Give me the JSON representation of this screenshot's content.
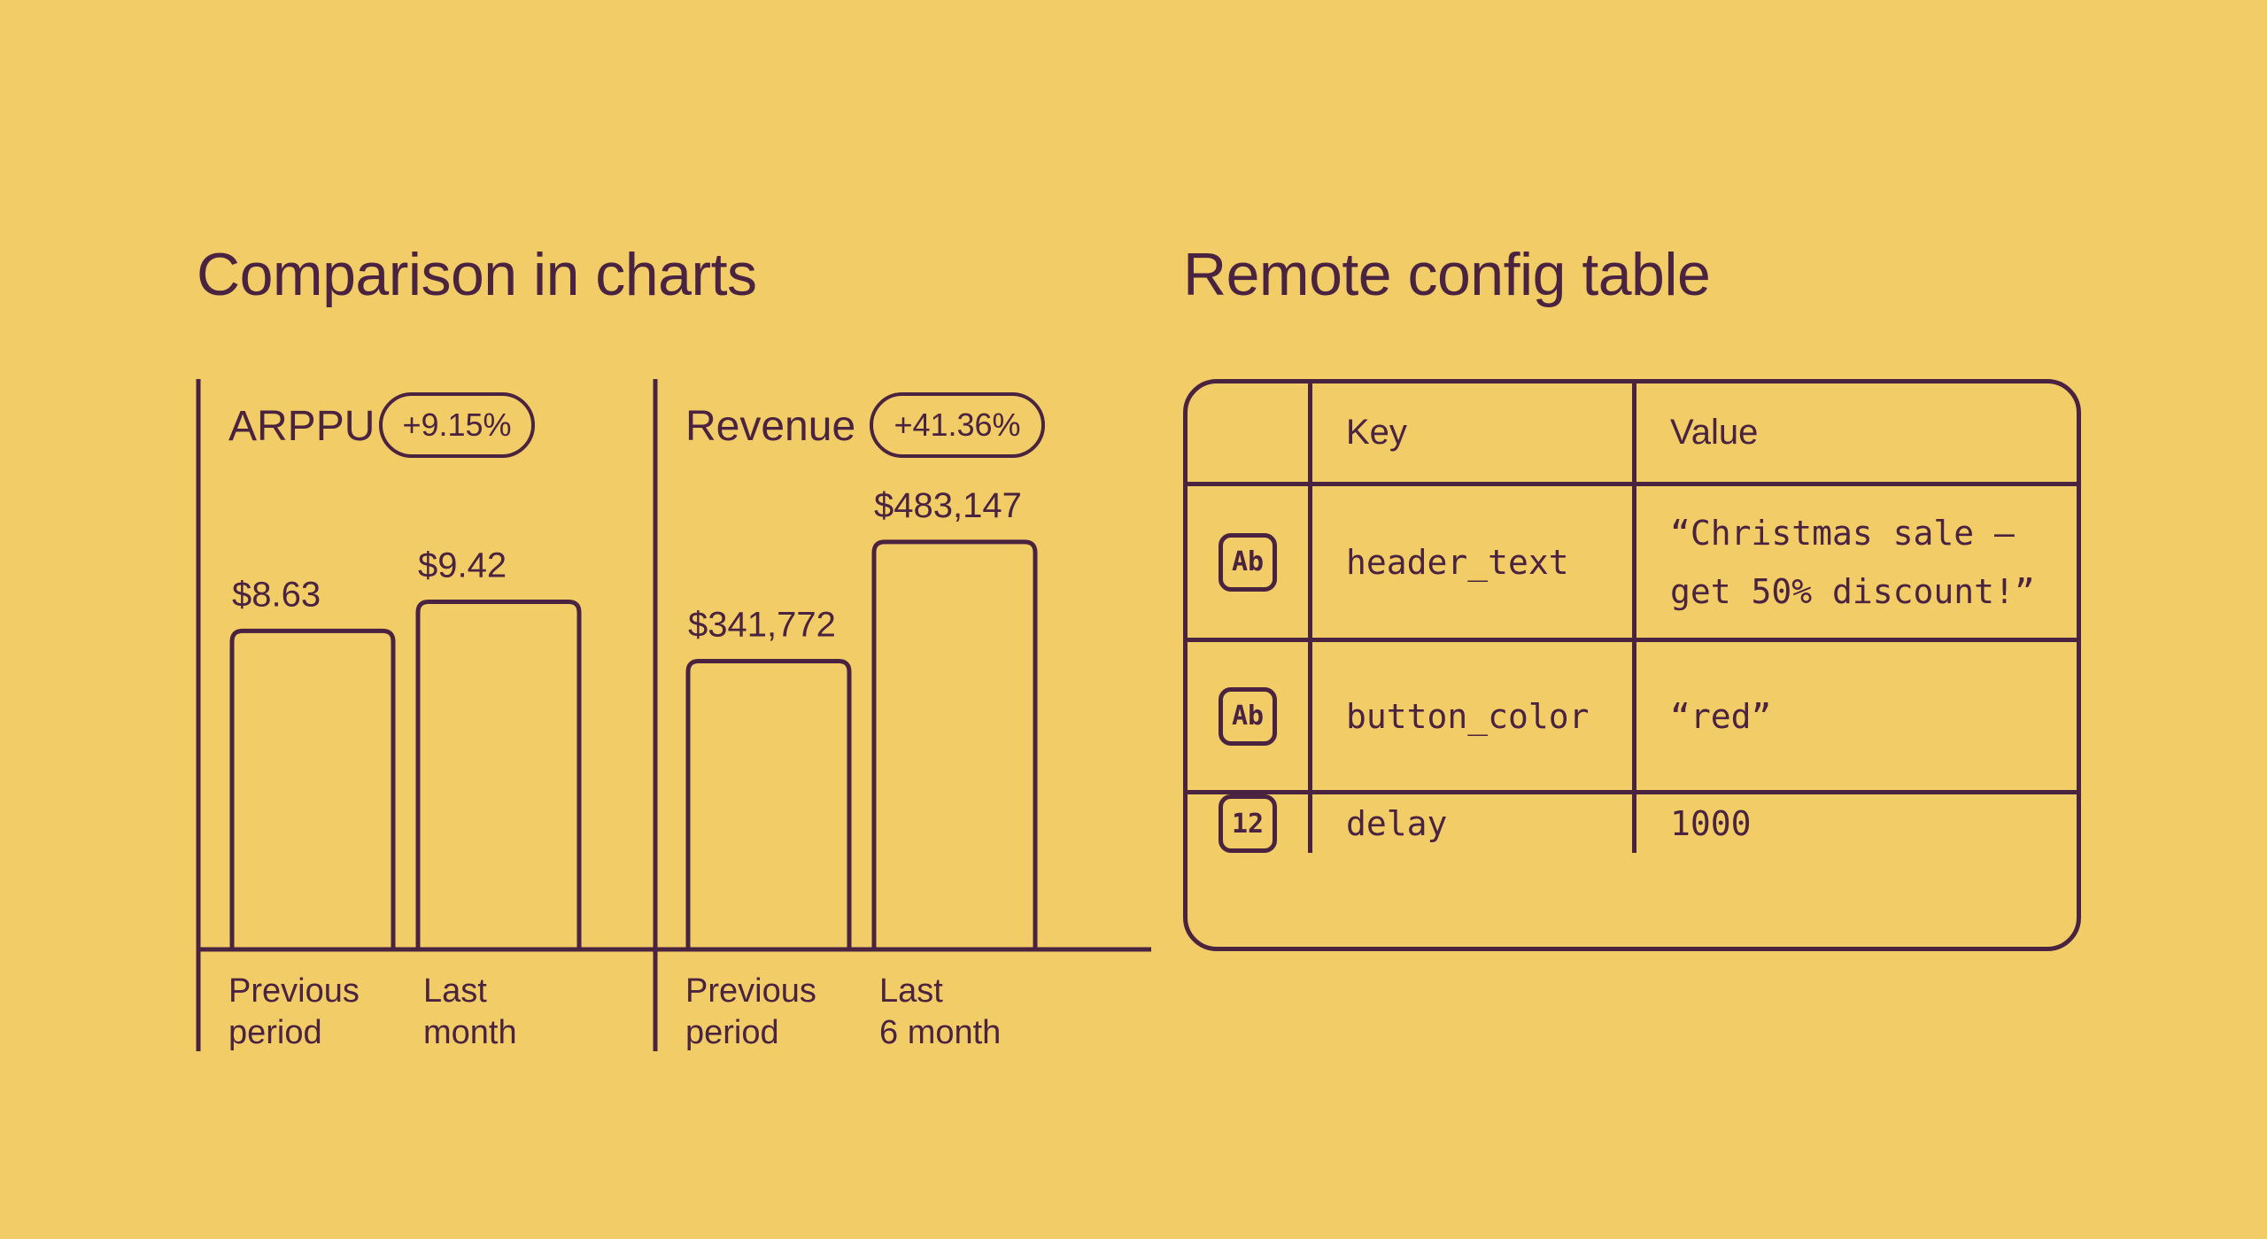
{
  "charts_section": {
    "title": "Comparison in charts"
  },
  "table_section": {
    "title": "Remote config table"
  },
  "colors": {
    "background": "#f2cc66",
    "ink": "#4a2340"
  },
  "chart_data": [
    {
      "type": "bar",
      "title": "ARPPU",
      "change": "+9.15%",
      "categories": [
        "Previous period",
        "Last month"
      ],
      "category_lines": [
        [
          "Previous",
          "period"
        ],
        [
          "Last",
          "month"
        ]
      ],
      "values": [
        8.63,
        9.42
      ],
      "value_labels": [
        "$8.63",
        "$9.42"
      ],
      "ylim": [
        0,
        12
      ]
    },
    {
      "type": "bar",
      "title": "Revenue",
      "change": "+41.36%",
      "categories": [
        "Previous period",
        "Last 6 month"
      ],
      "category_lines": [
        [
          "Previous",
          "period"
        ],
        [
          "Last",
          "6 month"
        ]
      ],
      "values": [
        341772,
        483147
      ],
      "value_labels": [
        "$341,772",
        "$483,147"
      ],
      "ylim": [
        0,
        525000
      ]
    }
  ],
  "config_table": {
    "headers": {
      "type": "",
      "key": "Key",
      "value": "Value"
    },
    "rows": [
      {
        "type_icon": "Ab",
        "type": "string",
        "key": "header_text",
        "value": "“Christmas sale –\nget 50% discount!”"
      },
      {
        "type_icon": "Ab",
        "type": "string",
        "key": "button_color",
        "value": "“red”"
      },
      {
        "type_icon": "12",
        "type": "number",
        "key": "delay",
        "value": "1000"
      }
    ]
  }
}
